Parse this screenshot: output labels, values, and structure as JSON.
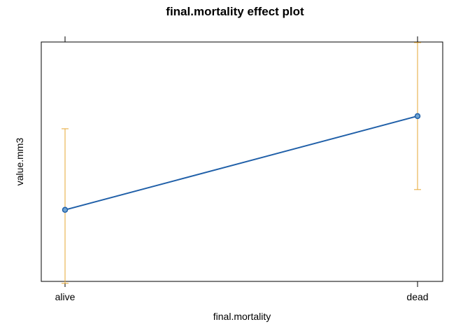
{
  "chart_data": {
    "type": "line",
    "title": "final.mortality effect plot",
    "xlabel": "final.mortality",
    "ylabel": "value.mm3",
    "categories": [
      "alive",
      "dead"
    ],
    "series": [
      {
        "values": [
          0.31,
          0.68
        ],
        "lower": [
          0.02,
          0.39
        ],
        "upper": [
          0.63,
          0.97
        ]
      }
    ],
    "ylim": [
      0,
      1
    ],
    "y_tick_labels_shown": false,
    "grid": false,
    "colors": {
      "line": "#1f5fa8",
      "point_fill": "#6fa3d1",
      "error_bar": "#e6a733",
      "frame": "#000000"
    }
  }
}
